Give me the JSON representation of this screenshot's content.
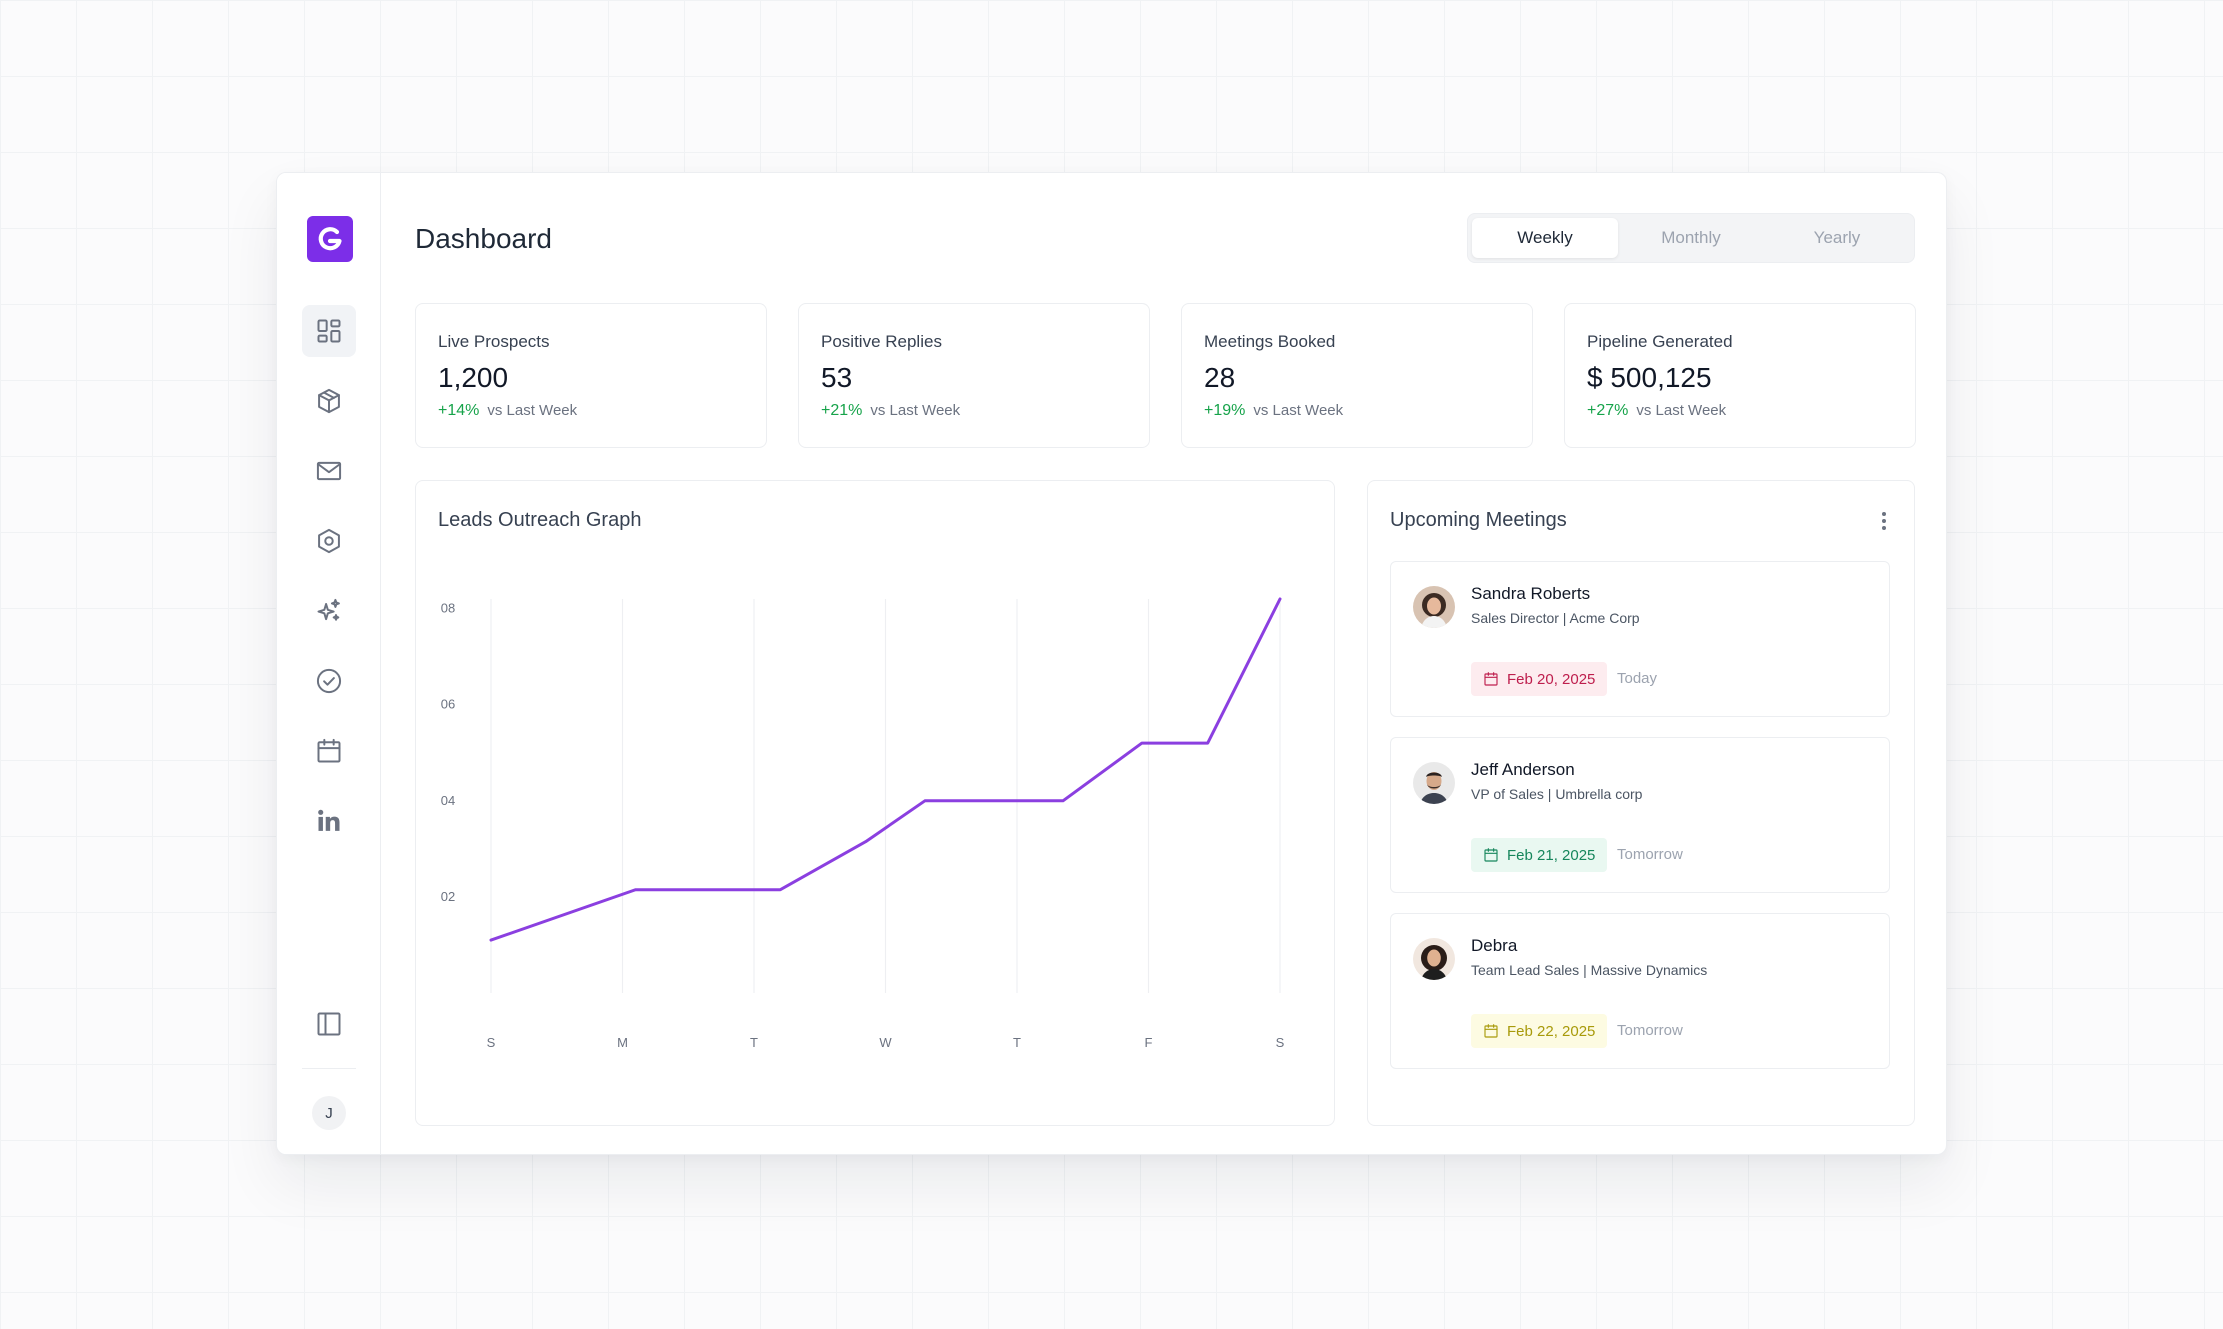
{
  "page": {
    "title": "Dashboard"
  },
  "period_tabs": [
    {
      "label": "Weekly",
      "active": true
    },
    {
      "label": "Monthly",
      "active": false
    },
    {
      "label": "Yearly",
      "active": false
    }
  ],
  "sidebar": {
    "logo": {
      "icon": "brand-g-logo",
      "color": "#7c2ee8"
    },
    "items": [
      {
        "name": "dashboard",
        "icon": "grid-icon",
        "active": true
      },
      {
        "name": "products",
        "icon": "cube-icon",
        "active": false
      },
      {
        "name": "mail",
        "icon": "envelope-icon",
        "active": false
      },
      {
        "name": "settings",
        "icon": "hexagon-icon",
        "active": false
      },
      {
        "name": "ai",
        "icon": "sparkles-icon",
        "active": false
      },
      {
        "name": "tasks",
        "icon": "check-circle-icon",
        "active": false
      },
      {
        "name": "calendar",
        "icon": "calendar-icon",
        "active": false
      },
      {
        "name": "linkedin",
        "icon": "linkedin-icon",
        "active": false
      }
    ],
    "collapse_icon": "sidebar-panel-icon",
    "user_initial": "J"
  },
  "stats": [
    {
      "label": "Live Prospects",
      "value": "1,200",
      "delta": "+14%",
      "compare": "vs Last Week"
    },
    {
      "label": "Positive Replies",
      "value": "53",
      "delta": "+21%",
      "compare": "vs Last Week"
    },
    {
      "label": "Meetings Booked",
      "value": "28",
      "delta": "+19%",
      "compare": "vs Last Week"
    },
    {
      "label": "Pipeline Generated",
      "value": "$ 500,125",
      "delta": "+27%",
      "compare": "vs Last Week"
    }
  ],
  "chart_card": {
    "title": "Leads Outreach Graph"
  },
  "chart_data": {
    "type": "line",
    "title": "Leads Outreach Graph",
    "categories": [
      "S",
      "M",
      "T",
      "W",
      "T",
      "F",
      "S"
    ],
    "y_ticks": [
      "02",
      "04",
      "06",
      "08"
    ],
    "ylim": [
      0,
      8.2
    ],
    "points": [
      {
        "x": 0,
        "y": 1.1
      },
      {
        "x": 1.1,
        "y": 2.15
      },
      {
        "x": 2.2,
        "y": 2.15
      },
      {
        "x": 2.85,
        "y": 3.15
      },
      {
        "x": 3.3,
        "y": 4.0
      },
      {
        "x": 4.35,
        "y": 4.0
      },
      {
        "x": 4.95,
        "y": 5.2
      },
      {
        "x": 5.45,
        "y": 5.2
      },
      {
        "x": 6,
        "y": 8.2
      }
    ],
    "line_color": "#8b3fe0",
    "grid": "vertical"
  },
  "meetings": {
    "title": "Upcoming Meetings",
    "items": [
      {
        "name": "Sandra Roberts",
        "role": "Sales Director | Acme Corp",
        "date": "Feb 20, 2025",
        "when": "Today",
        "badge_bg": "#fdecef",
        "badge_fg": "#be1e4d"
      },
      {
        "name": "Jeff Anderson",
        "role": "VP of Sales | Umbrella corp",
        "date": "Feb 21, 2025",
        "when": "Tomorrow",
        "badge_bg": "#e9f8f1",
        "badge_fg": "#16865c"
      },
      {
        "name": "Debra",
        "role": "Team Lead Sales | Massive Dynamics",
        "date": "Feb 22, 2025",
        "when": "Tomorrow",
        "badge_bg": "#fdfbe2",
        "badge_fg": "#a89a0a"
      }
    ]
  }
}
